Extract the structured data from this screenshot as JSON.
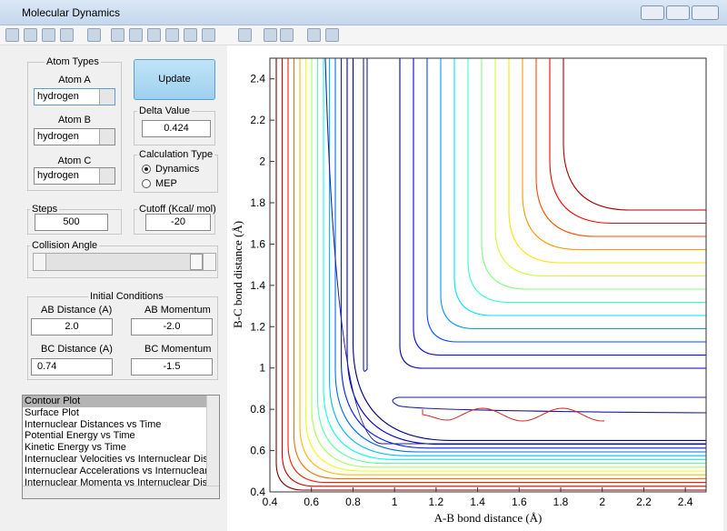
{
  "window": {
    "title": "Molecular Dynamics"
  },
  "atom_types": {
    "title": "Atom Types",
    "fields": [
      {
        "label": "Atom A",
        "value": "hydrogen"
      },
      {
        "label": "Atom B",
        "value": "hydrogen"
      },
      {
        "label": "Atom C",
        "value": "hydrogen"
      }
    ]
  },
  "update_button": "Update",
  "delta_value": {
    "label": "Delta Value",
    "value": "0.424"
  },
  "calculation_type": {
    "label": "Calculation Type",
    "options": [
      "Dynamics",
      "MEP"
    ]
  },
  "steps": {
    "label": "Steps",
    "value": "500"
  },
  "cutoff": {
    "label": "Cutoff (Kcal/ mol)",
    "value": "-20"
  },
  "collision_angle": {
    "label": "Collision Angle"
  },
  "initial_conditions": {
    "title": "Initial Conditions",
    "fields": [
      {
        "label": "AB Distance (A)",
        "value": "2.0"
      },
      {
        "label": "AB Momentum",
        "value": "-2.0"
      },
      {
        "label": "BC Distance (A)",
        "value": "0.74"
      },
      {
        "label": "BC Momentum",
        "value": "-1.5"
      }
    ]
  },
  "plot_list": [
    "Contour Plot",
    "Surface Plot",
    "Internuclear Distances vs Time",
    "Potential Energy vs Time",
    "Kinetic Energy vs Time",
    "Internuclear Velocities vs Internuclear Distance",
    "Internuclear Accelerations vs Internuclear Dista",
    "Internuclear Momenta vs Internuclear Distance"
  ],
  "plot": {
    "x_label": "A-B bond distance (Å)",
    "y_label": "B-C bond distance (Å)",
    "xlim": [
      0.4,
      2.5
    ],
    "ylim": [
      0.4,
      2.5
    ],
    "xticks": [
      0.4,
      0.6,
      0.8,
      1,
      1.2,
      1.4,
      1.6,
      1.8,
      2,
      2.2,
      2.4
    ],
    "yticks": [
      0.4,
      0.6,
      0.8,
      1,
      1.2,
      1.4,
      1.6,
      1.8,
      2,
      2.2,
      2.4
    ]
  }
}
